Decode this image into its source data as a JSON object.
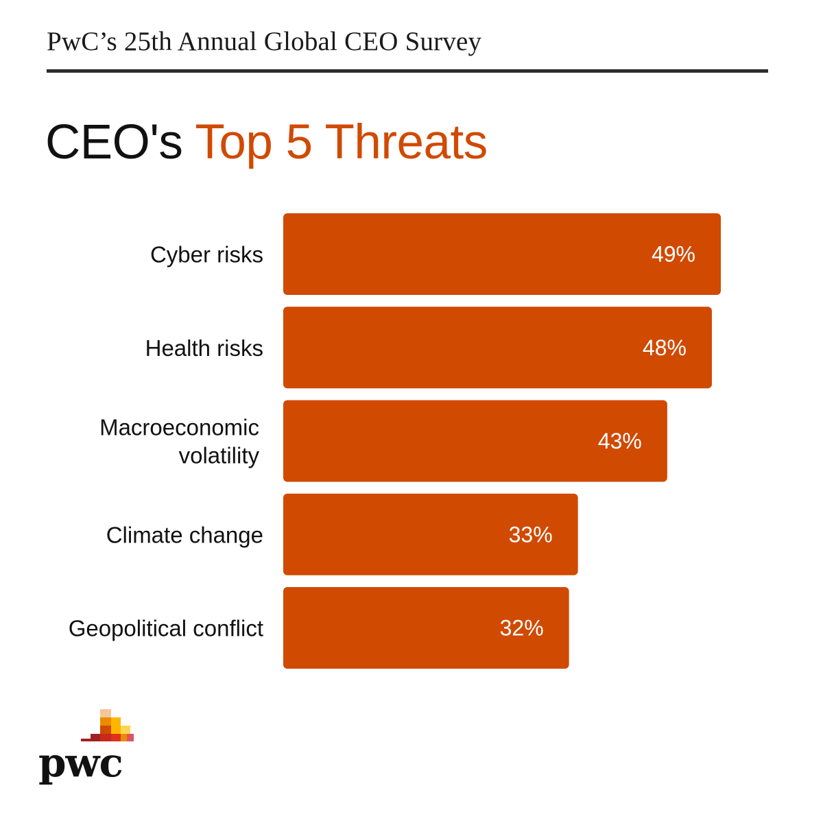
{
  "header": {
    "title": "PwC’s 25th Annual Global CEO Survey"
  },
  "main": {
    "title_prefix": "CEO's",
    "title_accent": "Top 5 Threats"
  },
  "colors": {
    "accent": "#d04a02",
    "text": "#111111",
    "value_text": "#ffffff",
    "rule": "#2d2d2d"
  },
  "chart_data": {
    "type": "bar",
    "orientation": "horizontal",
    "categories": [
      [
        "Cyber risks"
      ],
      [
        "Health risks"
      ],
      [
        "Macroeconomic",
        "volatility"
      ],
      [
        "Climate change"
      ],
      [
        "Geopolitical conflict"
      ]
    ],
    "values": [
      49,
      48,
      43,
      33,
      32
    ],
    "value_labels": [
      "49%",
      "48%",
      "43%",
      "33%",
      "32%"
    ],
    "unit": "%",
    "xlim": [
      0,
      49
    ],
    "grid": false,
    "legend": "none"
  },
  "logo": {
    "icon": "pwc-logo-icon",
    "wordmark": "pwc"
  }
}
